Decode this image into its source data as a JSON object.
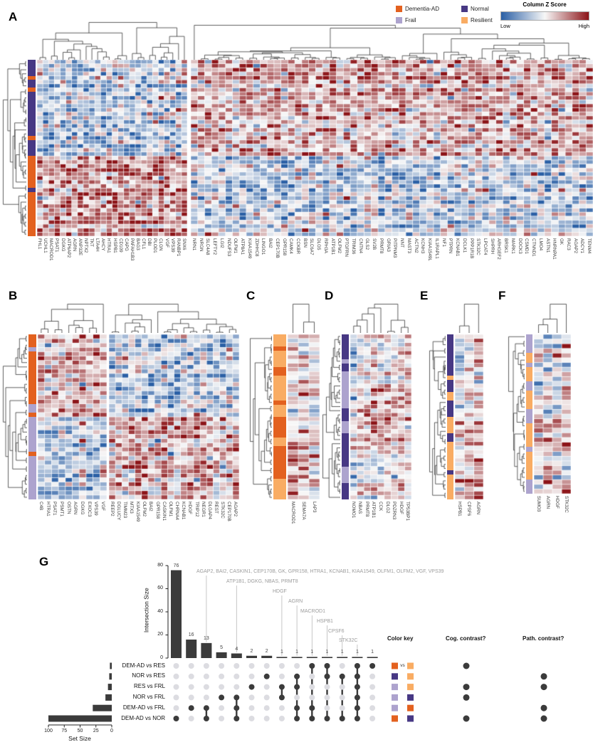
{
  "panels": {
    "A": {
      "label": "A"
    },
    "B": {
      "label": "B"
    },
    "C": {
      "label": "C"
    },
    "D": {
      "label": "D"
    },
    "E": {
      "label": "E"
    },
    "F": {
      "label": "F"
    },
    "G": {
      "label": "G"
    }
  },
  "legend": {
    "groups": [
      {
        "label": "Dementia-AD",
        "color": "#E3611F"
      },
      {
        "label": "Frail",
        "color": "#ADA3CE"
      },
      {
        "label": "Normal",
        "color": "#473884"
      },
      {
        "label": "Resilient",
        "color": "#F9AC63"
      }
    ],
    "colorscale": {
      "title": "Column Z Score",
      "low": "Low",
      "high": "High",
      "low_color": "#2A5FA5",
      "mid_color": "#F7F7F7",
      "high_color": "#8C1418"
    }
  },
  "chart_data": [
    {
      "panel": "A",
      "type": "heatmap",
      "seed": 11,
      "noise_sd": 0.38,
      "row_groups": [
        24,
        20
      ],
      "block_means": [
        [
          -0.28,
          0.3
        ],
        [
          0.45,
          -0.3
        ]
      ],
      "row_annotation": [
        [
          "Normal",
          4
        ],
        [
          "Dementia-AD",
          1
        ],
        [
          "Normal",
          2
        ],
        [
          "Dementia-AD",
          1
        ],
        [
          "Normal",
          11
        ],
        [
          "Dementia-AD",
          1
        ],
        [
          "Normal",
          4
        ],
        [
          "Dementia-AD",
          8
        ],
        [
          "Normal",
          1
        ],
        [
          "Dementia-AD",
          11
        ]
      ],
      "col_labels_left": [
        "FHL1",
        "UCHL1",
        "MACROD1",
        "PSAT1",
        "DGKG",
        "ATP6AP2",
        "AGRN",
        "ANP32E",
        "NPTX2",
        "TKT",
        "LTA4H",
        "AHCY",
        "HTRA1",
        "HSPB1",
        "CD109",
        "CAPG",
        "PAFAH1B3",
        "BAG3",
        "CFL1",
        "DBI",
        "PLOD1",
        "CLGN",
        "VGF",
        "VPS39",
        "RANBP1",
        "SNX6"
      ],
      "col_labels_right": [
        "NRN1",
        "NRGN",
        "SLC4A8",
        "LEFTY2",
        "LGI2",
        "NDUFS3",
        "OLFM1",
        "ATP8A1",
        "KIAA1549",
        "ZDHHC8",
        "LINGO1",
        "BAI2",
        "CEP170B",
        "GPR158",
        "CAMK4",
        "CCKBR",
        "BSN",
        "SLC6A7",
        "DLG5",
        "RPH3A",
        "ATP1B1",
        "OLFM2",
        "PTGFRN",
        "TRIM36",
        "CNTN4",
        "GLS2",
        "SV2B",
        "PRMT8",
        "GRIA3",
        "PITPNM3",
        "NNT",
        "MAST3",
        "ACTN2",
        "KCNH3",
        "KIAA1549L",
        "IL1RAPL1",
        "NF1",
        "PTPRN",
        "KCNAB1",
        "DCLK1",
        "PPP1R1B",
        "STK32C",
        "LPCAT4",
        "SHPRH",
        "ARHGEF2",
        "BRSK1",
        "MARK1",
        "DOCK3",
        "CSMD1",
        "CTNND1",
        "LMO4",
        "ASTN1",
        "HNRNPA1",
        "GK",
        "RAC3",
        "AGAP2",
        "ADCY1",
        "TENM4"
      ]
    },
    {
      "panel": "B",
      "type": "heatmap",
      "seed": 22,
      "noise_sd": 0.36,
      "row_groups": [
        19,
        19
      ],
      "block_means": [
        [
          0.4,
          -0.25
        ],
        [
          -0.18,
          0.35
        ]
      ],
      "row_annotation": [
        [
          "Dementia-AD",
          3
        ],
        [
          "Frail",
          1
        ],
        [
          "Dementia-AD",
          12
        ],
        [
          "Frail",
          2
        ],
        [
          "Dementia-AD",
          1
        ],
        [
          "Frail",
          8
        ],
        [
          "Dementia-AD",
          1
        ],
        [
          "Frail",
          10
        ]
      ],
      "col_labels_left": [
        "C4B",
        "HTRA1",
        "PSAT1",
        "PSMT1",
        "OSTN",
        "AGRN",
        "DGKG",
        "EXOC3",
        "VPS39",
        "VGF"
      ],
      "col_labels_right": [
        "REEP2",
        "DGLUCY",
        "TIMM23",
        "MTX3",
        "KIAA1549",
        "OLFM2",
        "BAI2",
        "GPR158",
        "CASKIN1",
        "OLFM1",
        "CHRNA4",
        "KCNAB1",
        "HDGF",
        "TRIP12",
        "NEGR1",
        "DLGAP4",
        "REST",
        "STK32C",
        "CEP170B",
        "AGAP2"
      ]
    },
    {
      "panel": "C",
      "type": "heatmap",
      "seed": 33,
      "noise_sd": 0.3,
      "row_groups": [
        26,
        14
      ],
      "col_means": [
        [
          0.05,
          0.1,
          0.0
        ],
        [
          0.45,
          0.15,
          0.1
        ]
      ],
      "row_annotation": [
        [
          "Resilient",
          3
        ],
        [
          "Dementia-AD",
          1
        ],
        [
          "Resilient",
          4
        ],
        [
          "Dementia-AD",
          2
        ],
        [
          "Resilient",
          6
        ],
        [
          "Dementia-AD",
          1
        ],
        [
          "Resilient",
          3
        ],
        [
          "Dementia-AD",
          5
        ],
        [
          "Resilient",
          2
        ],
        [
          "Dementia-AD",
          8
        ],
        [
          "Resilient",
          5
        ]
      ],
      "col_labels": [
        "MACROD1",
        "SEMA7A",
        "LAP3"
      ]
    },
    {
      "panel": "D",
      "type": "heatmap",
      "seed": 44,
      "noise_sd": 0.3,
      "row_groups": [
        13,
        14,
        13
      ],
      "col_means": [
        [
          -0.15,
          -0.1,
          -0.05,
          0.05,
          -0.1,
          -0.05,
          -0.1,
          0.0,
          -0.05
        ],
        [
          0.15,
          0.1,
          0.25,
          0.3,
          0.1,
          0.2,
          0.25,
          0.15,
          0.1
        ],
        [
          0.0,
          -0.05,
          0.05,
          -0.1,
          0.1,
          -0.05,
          0.0,
          0.2,
          -0.1
        ]
      ],
      "row_annotation": [
        [
          "Normal",
          6
        ],
        [
          "Frail",
          1
        ],
        [
          "Normal",
          2
        ],
        [
          "Frail",
          9
        ],
        [
          "Normal",
          3
        ],
        [
          "Frail",
          3
        ],
        [
          "Normal",
          8
        ],
        [
          "Frail",
          4
        ],
        [
          "Normal",
          4
        ]
      ],
      "col_labels": [
        "NOMO1",
        "NBAS",
        "PRMT8",
        "ATP1B1",
        "CCK",
        "DLG2",
        "PDZRN3",
        "HDGF",
        "TP53BP1"
      ]
    },
    {
      "panel": "E",
      "type": "heatmap",
      "seed": 55,
      "noise_sd": 0.3,
      "row_groups": [
        20,
        20
      ],
      "col_means": [
        [
          -0.1,
          -0.05,
          0.1
        ],
        [
          0.15,
          0.1,
          0.55
        ]
      ],
      "row_annotation": [
        [
          "Normal",
          10
        ],
        [
          "Resilient",
          1
        ],
        [
          "Normal",
          3
        ],
        [
          "Resilient",
          2
        ],
        [
          "Normal",
          4
        ],
        [
          "Resilient",
          4
        ],
        [
          "Normal",
          2
        ],
        [
          "Resilient",
          7
        ],
        [
          "Normal",
          1
        ],
        [
          "Resilient",
          6
        ]
      ],
      "col_labels": [
        "HSPB1",
        "CPSF6",
        "AGRN"
      ]
    },
    {
      "panel": "F",
      "type": "heatmap",
      "seed": 66,
      "noise_sd": 0.32,
      "row_groups": [
        17,
        17
      ],
      "col_means": [
        [
          -0.05,
          0.0,
          -0.1,
          0.05
        ],
        [
          0.2,
          0.35,
          0.25,
          0.15
        ]
      ],
      "row_annotation": [
        [
          "Frail",
          4
        ],
        [
          "Resilient",
          2
        ],
        [
          "Frail",
          1
        ],
        [
          "Resilient",
          3
        ],
        [
          "Frail",
          2
        ],
        [
          "Resilient",
          4
        ],
        [
          "Frail",
          3
        ],
        [
          "Resilient",
          5
        ],
        [
          "Frail",
          1
        ],
        [
          "Resilient",
          6
        ],
        [
          "Frail",
          3
        ]
      ],
      "col_labels": [
        "SUMO3",
        "AGRN",
        "HDGF",
        "STK32C"
      ]
    },
    {
      "panel": "G",
      "type": "upset",
      "ylabel": "Intersection Size",
      "yticks": [
        0,
        20,
        40,
        60,
        80
      ],
      "xlabel": "Set Size",
      "set_ticks": [
        100,
        75,
        50,
        25,
        0
      ],
      "headers": {
        "color_key": "Color key",
        "vs": "vs",
        "cog": "Cog. contrast?",
        "path": "Path. contrast?"
      },
      "sets": [
        {
          "label": "DEM-AD vs RES",
          "size": 3,
          "key": [
            "#E3611F",
            "#F9AC63"
          ],
          "cog": true,
          "path": false
        },
        {
          "label": "NOR vs RES",
          "size": 4,
          "key": [
            "#473884",
            "#F9AC63"
          ],
          "cog": false,
          "path": true
        },
        {
          "label": "RES vs FRL",
          "size": 6,
          "key": [
            "#ADA3CE",
            "#F9AC63"
          ],
          "cog": true,
          "path": true
        },
        {
          "label": "NOR vs FRL",
          "size": 10,
          "key": [
            "#ADA3CE",
            "#473884"
          ],
          "cog": true,
          "path": false
        },
        {
          "label": "DEM-AD vs FRL",
          "size": 30,
          "key": [
            "#ADA3CE",
            "#E3611F"
          ],
          "cog": false,
          "path": true
        },
        {
          "label": "DEM-AD vs NOR",
          "size": 100,
          "key": [
            "#E3611F",
            "#473884"
          ],
          "cog": true,
          "path": true
        }
      ],
      "intersections": [
        {
          "size": 76,
          "sets": [
            5
          ]
        },
        {
          "size": 16,
          "sets": [
            4
          ]
        },
        {
          "size": 13,
          "sets": [
            4,
            5
          ]
        },
        {
          "size": 5,
          "sets": [
            3
          ]
        },
        {
          "size": 4,
          "sets": [
            3,
            4,
            5
          ]
        },
        {
          "size": 2,
          "sets": [
            2
          ]
        },
        {
          "size": 2,
          "sets": [
            1
          ]
        },
        {
          "size": 1,
          "sets": [
            2,
            3
          ]
        },
        {
          "size": 1,
          "sets": [
            1,
            2,
            4,
            5
          ]
        },
        {
          "size": 1,
          "sets": [
            0,
            4,
            5
          ]
        },
        {
          "size": 1,
          "sets": [
            0,
            1,
            5
          ]
        },
        {
          "size": 1,
          "sets": [
            1,
            5
          ]
        },
        {
          "size": 1,
          "sets": [
            0,
            1,
            2,
            3,
            4,
            5
          ]
        },
        {
          "size": 1,
          "sets": [
            0
          ]
        }
      ],
      "annotations": [
        {
          "text": "AGAP2, BAI2, CASKIN1, CEP170B, GK, GPR158, HTRA1, KCNAB1, KIAA1549, OLFM1, OLFM2, VGF, VPS39",
          "bar": 2
        },
        {
          "text": "ATP1B1, DGKG, NBAS, PRMT8",
          "bar": 4
        },
        {
          "text": "HDGF",
          "bar": 7
        },
        {
          "text": "AGRN",
          "bar": 8
        },
        {
          "text": "MACROD1",
          "bar": 9
        },
        {
          "text": "HSPB1",
          "bar": 10
        },
        {
          "text": "CPSF6",
          "bar": 11
        },
        {
          "text": "STK32C",
          "bar": 12
        }
      ]
    }
  ]
}
